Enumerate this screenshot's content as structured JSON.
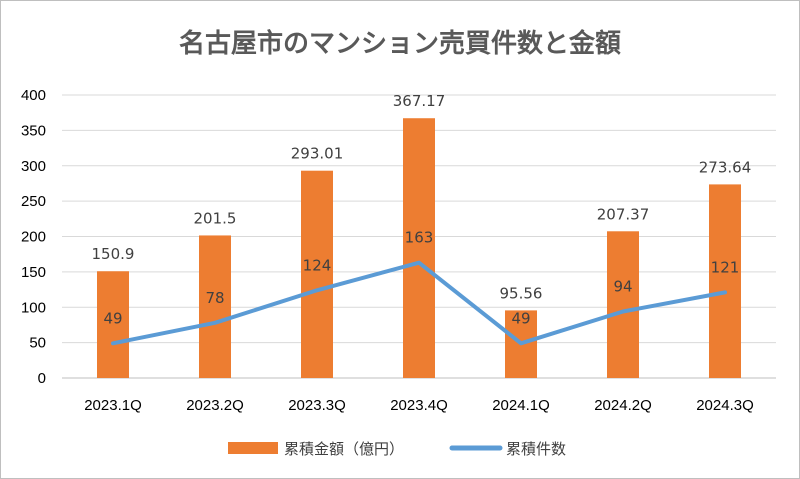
{
  "chart_data": {
    "type": "bar",
    "title": "名古屋市のマンション売買件数と金額",
    "categories": [
      "2023.1Q",
      "2023.2Q",
      "2023.3Q",
      "2023.4Q",
      "2024.1Q",
      "2024.2Q",
      "2024.3Q"
    ],
    "ylim": [
      0,
      400
    ],
    "yticks": [
      0,
      50,
      100,
      150,
      200,
      250,
      300,
      350,
      400
    ],
    "grid": true,
    "legend_position": "bottom",
    "series": [
      {
        "name": "累積金額（億円）",
        "type": "bar",
        "color": "#ed7d31",
        "values": [
          150.9,
          201.5,
          293.01,
          367.17,
          95.56,
          207.37,
          273.64
        ],
        "labels": [
          "150.9",
          "201.5",
          "293.01",
          "367.17",
          "95.56",
          "207.37",
          "273.64"
        ]
      },
      {
        "name": "累積件数",
        "type": "line",
        "color": "#5b9bd5",
        "values": [
          49,
          78,
          124,
          163,
          49,
          94,
          121
        ],
        "labels": [
          "49",
          "78",
          "124",
          "163",
          "49",
          "94",
          "121"
        ]
      }
    ]
  }
}
